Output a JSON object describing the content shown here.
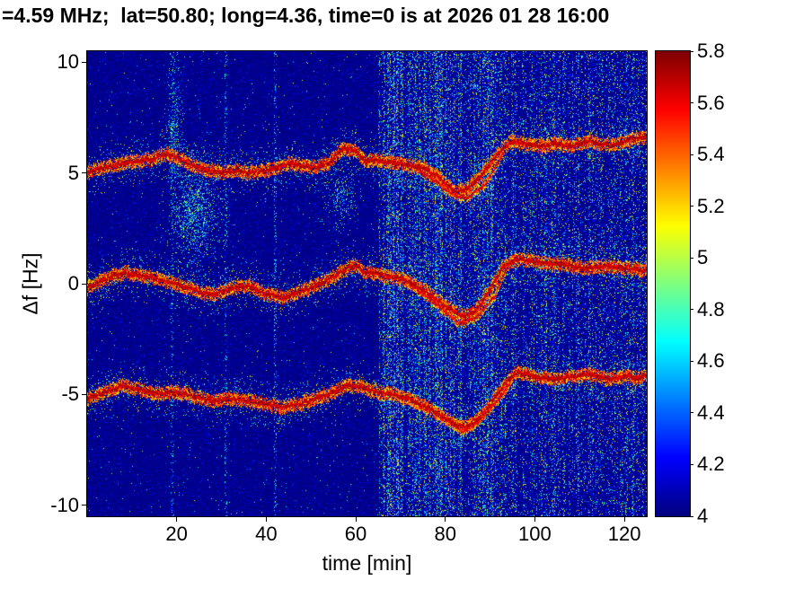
{
  "title": "=4.59 MHz;  lat=50.80; long=4.36, time=0 is at 2026 01 28 16:00",
  "chart_data": {
    "type": "heatmap",
    "title": "=4.59 MHz;  lat=50.80; long=4.36, time=0 is at 2026 01 28 16:00",
    "xlabel": "time [min]",
    "ylabel": "Δf [Hz]",
    "x_range": [
      0,
      125
    ],
    "y_range": [
      -10.5,
      10.5
    ],
    "x_ticks": [
      20,
      40,
      60,
      80,
      100,
      120
    ],
    "y_ticks": [
      -10,
      -5,
      0,
      5,
      10
    ],
    "colormap": "jet",
    "color_range": [
      4,
      5.8
    ],
    "colorbar_ticks": [
      4,
      4.2,
      4.4,
      4.6,
      4.8,
      5,
      5.2,
      5.4,
      5.6,
      5.8
    ],
    "background_value": 4,
    "noise": {
      "transition_t": 65,
      "dense_band": [
        66,
        91
      ],
      "artifact_times": [
        19,
        31,
        42
      ]
    },
    "blobs": [
      {
        "t": 24,
        "f": 3.2,
        "rt": 3.0,
        "rf": 1.2,
        "density": 0.45
      },
      {
        "t": 19.5,
        "f": 7.3,
        "rt": 1.0,
        "rf": 1.6,
        "density": 0.3
      },
      {
        "t": 57,
        "f": 3.8,
        "rt": 2.0,
        "rf": 0.8,
        "density": 0.25
      }
    ],
    "traces": [
      {
        "name": "upper-doppler-trace",
        "points": [
          [
            0,
            5.0
          ],
          [
            5,
            5.3
          ],
          [
            10,
            5.5
          ],
          [
            14,
            5.6
          ],
          [
            18,
            5.85
          ],
          [
            21,
            5.6
          ],
          [
            24,
            5.3
          ],
          [
            27,
            5.15
          ],
          [
            30,
            5.0
          ],
          [
            33,
            5.1
          ],
          [
            36,
            5.0
          ],
          [
            40,
            5.1
          ],
          [
            43,
            5.3
          ],
          [
            46,
            5.45
          ],
          [
            48,
            5.3
          ],
          [
            51,
            5.25
          ],
          [
            54,
            5.45
          ],
          [
            57,
            6.1
          ],
          [
            60,
            5.95
          ],
          [
            62,
            5.6
          ],
          [
            65,
            5.55
          ],
          [
            70,
            5.45
          ],
          [
            75,
            5.2
          ],
          [
            78,
            4.9
          ],
          [
            82,
            4.15
          ],
          [
            85,
            4.3
          ],
          [
            88,
            4.9
          ],
          [
            92,
            5.9
          ],
          [
            95,
            6.45
          ],
          [
            98,
            6.3
          ],
          [
            102,
            6.2
          ],
          [
            105,
            6.35
          ],
          [
            108,
            6.2
          ],
          [
            112,
            6.45
          ],
          [
            115,
            6.3
          ],
          [
            118,
            6.25
          ],
          [
            121,
            6.5
          ],
          [
            125,
            6.65
          ]
        ],
        "branch": [
          [
            73,
            5.3
          ],
          [
            78,
            4.6
          ],
          [
            82,
            4.0
          ],
          [
            85,
            3.85
          ],
          [
            89,
            4.5
          ],
          [
            93,
            5.9
          ]
        ]
      },
      {
        "name": "middle-doppler-trace",
        "points": [
          [
            0,
            -0.2
          ],
          [
            4,
            0.2
          ],
          [
            8,
            0.5
          ],
          [
            12,
            0.4
          ],
          [
            16,
            0.2
          ],
          [
            20,
            0.0
          ],
          [
            24,
            -0.3
          ],
          [
            28,
            -0.5
          ],
          [
            32,
            -0.2
          ],
          [
            36,
            -0.1
          ],
          [
            40,
            -0.45
          ],
          [
            44,
            -0.6
          ],
          [
            48,
            -0.35
          ],
          [
            52,
            0.0
          ],
          [
            55,
            0.3
          ],
          [
            58,
            0.7
          ],
          [
            60,
            0.85
          ],
          [
            62,
            0.55
          ],
          [
            65,
            0.45
          ],
          [
            68,
            0.3
          ],
          [
            72,
            0.1
          ],
          [
            76,
            -0.4
          ],
          [
            80,
            -1.0
          ],
          [
            84,
            -1.5
          ],
          [
            87,
            -1.15
          ],
          [
            90,
            -0.3
          ],
          [
            93,
            0.8
          ],
          [
            96,
            1.1
          ],
          [
            100,
            1.0
          ],
          [
            104,
            0.9
          ],
          [
            108,
            0.8
          ],
          [
            112,
            0.7
          ],
          [
            116,
            0.8
          ],
          [
            120,
            0.7
          ],
          [
            125,
            0.6
          ]
        ],
        "branch": [
          [
            72,
            0.0
          ],
          [
            78,
            -0.9
          ],
          [
            83,
            -1.8
          ],
          [
            87,
            -1.5
          ],
          [
            91,
            -0.6
          ],
          [
            94,
            0.9
          ]
        ]
      },
      {
        "name": "lower-doppler-trace",
        "points": [
          [
            0,
            -5.2
          ],
          [
            4,
            -4.9
          ],
          [
            8,
            -4.6
          ],
          [
            12,
            -4.8
          ],
          [
            16,
            -5.0
          ],
          [
            20,
            -4.9
          ],
          [
            24,
            -5.1
          ],
          [
            28,
            -5.3
          ],
          [
            32,
            -5.2
          ],
          [
            36,
            -5.3
          ],
          [
            40,
            -5.45
          ],
          [
            44,
            -5.6
          ],
          [
            48,
            -5.4
          ],
          [
            52,
            -5.15
          ],
          [
            55,
            -4.9
          ],
          [
            58,
            -4.6
          ],
          [
            61,
            -4.65
          ],
          [
            64,
            -4.85
          ],
          [
            68,
            -5.0
          ],
          [
            72,
            -5.2
          ],
          [
            76,
            -5.6
          ],
          [
            80,
            -6.1
          ],
          [
            84,
            -6.5
          ],
          [
            87,
            -6.2
          ],
          [
            90,
            -5.5
          ],
          [
            93,
            -4.6
          ],
          [
            96,
            -4.0
          ],
          [
            100,
            -4.2
          ],
          [
            104,
            -4.3
          ],
          [
            108,
            -4.2
          ],
          [
            112,
            -4.1
          ],
          [
            116,
            -4.3
          ],
          [
            120,
            -4.2
          ],
          [
            125,
            -4.2
          ]
        ],
        "branch": [
          [
            73,
            -5.3
          ],
          [
            79,
            -5.9
          ],
          [
            84,
            -6.7
          ],
          [
            88,
            -6.1
          ],
          [
            92,
            -5.2
          ],
          [
            95,
            -4.3
          ]
        ]
      }
    ]
  },
  "colors": {
    "background": "#ffffff",
    "frame": "#000000",
    "text": "#000000",
    "min_color": "#000080",
    "max_color": "#800000"
  }
}
